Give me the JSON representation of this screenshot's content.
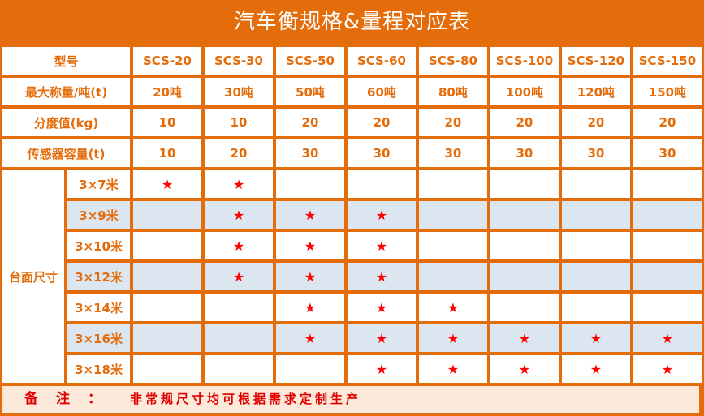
{
  "title": "汽车衡规格&量程对应表",
  "header": {
    "label": "型号",
    "models": [
      "SCS-20",
      "SCS-30",
      "SCS-50",
      "SCS-60",
      "SCS-80",
      "SCS-100",
      "SCS-120",
      "SCS-150"
    ]
  },
  "spec_rows": [
    {
      "label": "最大称量/吨(t)",
      "values": [
        "20吨",
        "30吨",
        "50吨",
        "60吨",
        "80吨",
        "100吨",
        "120吨",
        "150吨"
      ]
    },
    {
      "label": "分度值(kg)",
      "values": [
        "10",
        "10",
        "20",
        "20",
        "20",
        "20",
        "20",
        "20"
      ]
    },
    {
      "label": "传感器容量(t)",
      "values": [
        "10",
        "20",
        "30",
        "30",
        "30",
        "30",
        "30",
        "30"
      ]
    }
  ],
  "size_group_label": "台面尺寸",
  "star_symbol": "★",
  "size_rows": [
    {
      "label": "3×7米",
      "stars": [
        1,
        1,
        0,
        0,
        0,
        0,
        0,
        0
      ]
    },
    {
      "label": "3×9米",
      "stars": [
        0,
        1,
        1,
        1,
        0,
        0,
        0,
        0
      ]
    },
    {
      "label": "3×10米",
      "stars": [
        0,
        1,
        1,
        1,
        0,
        0,
        0,
        0
      ]
    },
    {
      "label": "3×12米",
      "stars": [
        0,
        1,
        1,
        1,
        0,
        0,
        0,
        0
      ]
    },
    {
      "label": "3×14米",
      "stars": [
        0,
        0,
        1,
        1,
        1,
        0,
        0,
        0
      ]
    },
    {
      "label": "3×16米",
      "stars": [
        0,
        0,
        1,
        1,
        1,
        1,
        1,
        1
      ]
    },
    {
      "label": "3×18米",
      "stars": [
        0,
        0,
        0,
        1,
        1,
        1,
        1,
        1
      ]
    }
  ],
  "note": {
    "label": "备注：",
    "text": "非常规尺寸均可根据需求定制生产"
  },
  "colors": {
    "accent": "#e46c0a",
    "stripe": "#dce6f1",
    "star": "#ff0000",
    "note_bg": "#fde9d9"
  }
}
